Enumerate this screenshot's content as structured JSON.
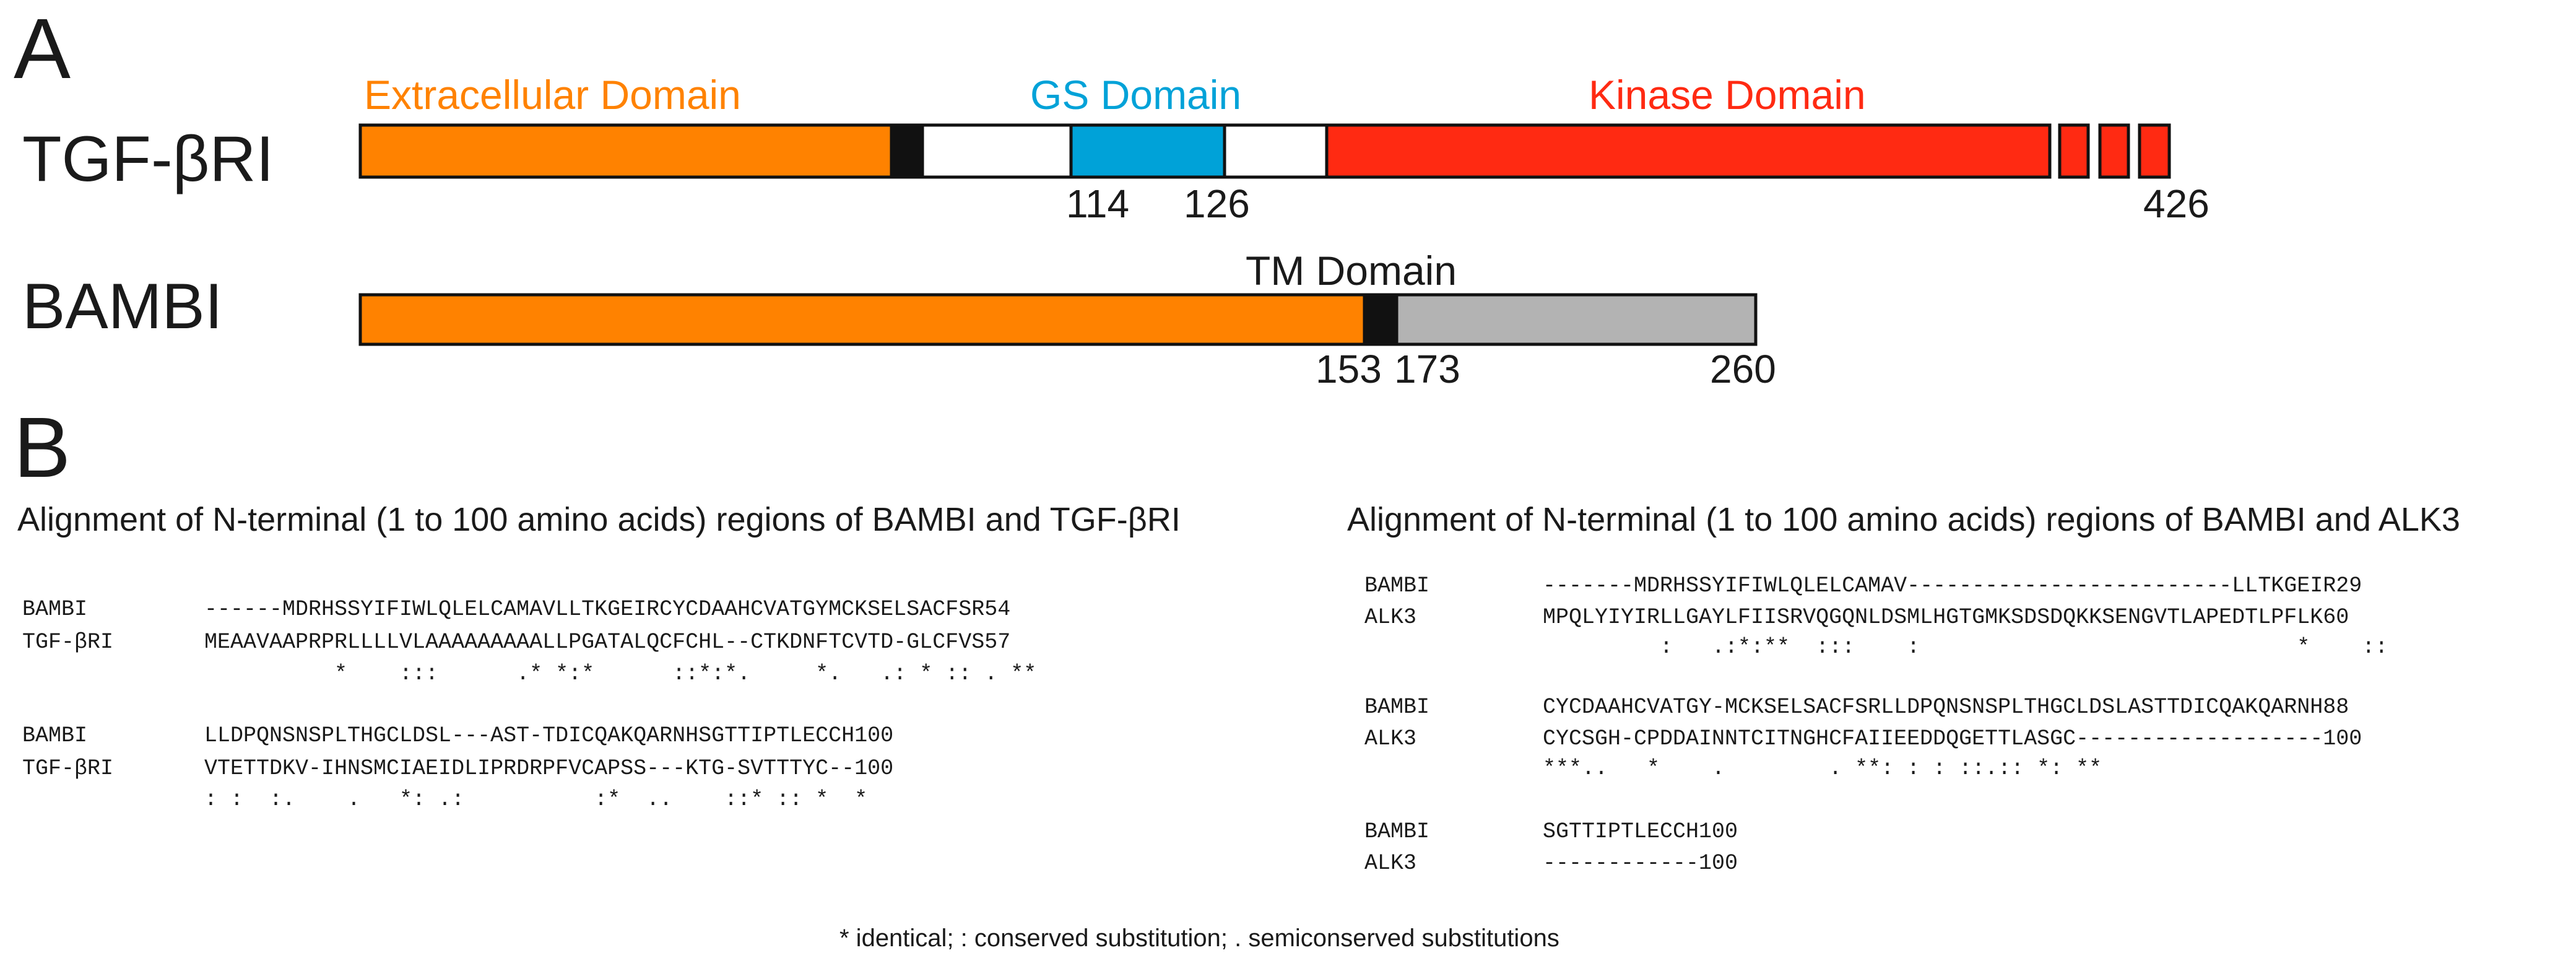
{
  "panel_a": {
    "label": "A",
    "tgf": {
      "name": "TGF-βRI",
      "domains": {
        "extracellular": {
          "label": "Extracellular Domain",
          "color": "#ff8200"
        },
        "gs": {
          "label": "GS Domain",
          "color": "#00a2d8"
        },
        "kinase": {
          "label": "Kinase Domain",
          "color": "#ff2a12"
        }
      },
      "positions": {
        "gs_start": "114",
        "gs_end": "126",
        "end": "426"
      }
    },
    "bambi": {
      "name": "BAMBI",
      "tm_label": "TM Domain",
      "tm_color": "#111111",
      "cyto_color": "#b3b3b3",
      "positions": {
        "tm_start": "153",
        "tm_end": "173",
        "end": "260"
      }
    }
  },
  "panel_b": {
    "label": "B",
    "left": {
      "title": "Alignment of N-terminal (1 to 100 amino acids) regions of BAMBI and TGF-βRI",
      "blocks": [
        {
          "lines": [
            {
              "name": "BAMBI",
              "seq": "------MDRHSSYIFIWLQLELCAMAVLLTKGEIRCYCDAAHCVATGYMCKSELSACFSR54"
            },
            {
              "name": "TGF-βRI",
              "seq": "MEAAVAAPRPRLLLLVLAAAAAAAAALLPGATALQCFCHL--CTKDNFTCVTD-GLCFVS57"
            }
          ],
          "consensus": "          *    :::      .* *:*      ::*:*.     *.   .: * :: . **"
        },
        {
          "lines": [
            {
              "name": "BAMBI",
              "seq": "LLDPQNSNSPLTHGCLDSL---AST-TDICQAKQARNHSGTTIPTLECCH100"
            },
            {
              "name": "TGF-βRI",
              "seq": "VTETTDKV-IHNSMCIAEIDLIPRDRPFVCAPSS---KTG-SVTTTYC--100"
            }
          ],
          "consensus": ": :  :.    .   *: .:          :*  ..    ::* :: *  *"
        }
      ]
    },
    "right": {
      "title": "Alignment of N-terminal (1 to 100 amino acids) regions of BAMBI and ALK3",
      "blocks": [
        {
          "lines": [
            {
              "name": "BAMBI",
              "seq": "-------MDRHSSYIFIWLQLELCAMAV-------------------------LLTKGEIR29"
            },
            {
              "name": "ALK3",
              "seq": "MPQLYIYIRLLGAYLFIISRVQGQNLDSMLHGTGMKSDSDQKKSENGVTLAPEDTLPFLK60"
            }
          ],
          "consensus": "         :   .:*:**  :::    :                             *    ::"
        },
        {
          "lines": [
            {
              "name": "BAMBI",
              "seq": "CYCDAAHCVATGY-MCKSELSACFSRLLDPQNSNSPLTHGCLDSLASTTDICQAKQARNH88"
            },
            {
              "name": "ALK3",
              "seq": "CYCSGH-CPDDAINNTCITNGHCFAIIEEDDQGETTLASGC-------------------100"
            }
          ],
          "consensus": "***..   *    .        . **: : : ::.:: *: **"
        },
        {
          "lines": [
            {
              "name": "BAMBI",
              "seq": "SGTTIPTLECCH100"
            },
            {
              "name": "ALK3",
              "seq": "------------100"
            }
          ],
          "consensus": ""
        }
      ]
    },
    "footnote": "* identical; : conserved substitution; . semiconserved substitutions"
  }
}
